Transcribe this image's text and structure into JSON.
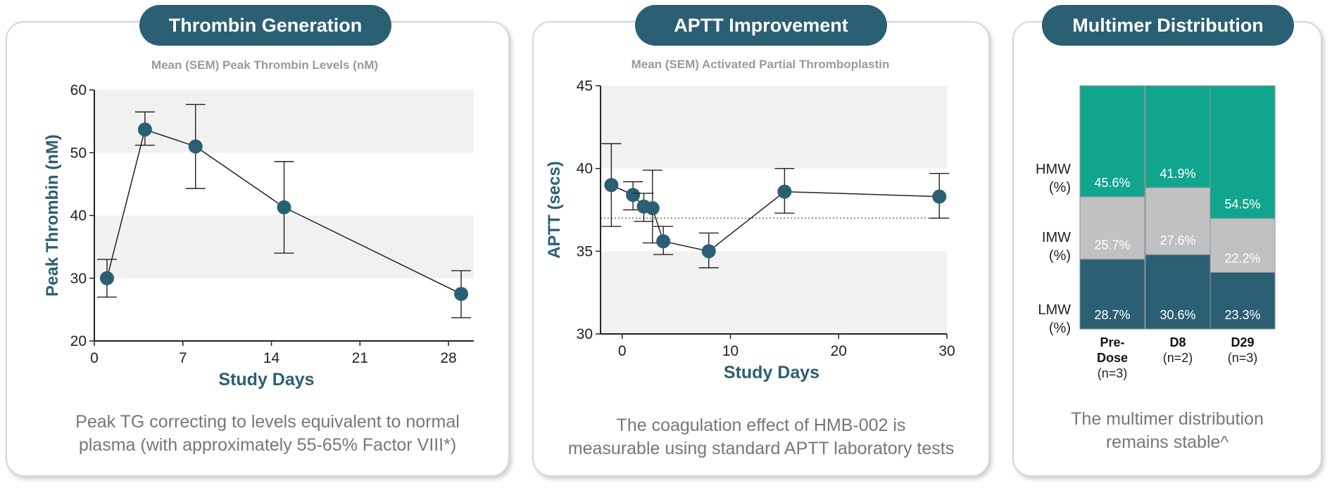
{
  "colors": {
    "title_bg": "#2b5f73",
    "marker": "#2b5f73",
    "band": "#f1f1f1",
    "hmw": "#12a58d",
    "imw": "#bfc1c3",
    "lmw": "#2b5f73"
  },
  "panels": [
    {
      "title": "Thrombin Generation",
      "caption_lines": [
        "Peak TG correcting to levels equivalent to normal",
        "plasma (with approximately 55-65% Factor VIII*)"
      ]
    },
    {
      "title": "APTT Improvement",
      "caption_lines": [
        "The coagulation effect of HMB-002 is",
        "measurable using standard APTT laboratory tests"
      ]
    },
    {
      "title": "Multimer Distribution",
      "caption_lines": [
        "The multimer distribution",
        "remains stable^"
      ]
    }
  ],
  "chart_data": [
    {
      "type": "line",
      "subtitle": "Mean (SEM) Peak Thrombin Levels (nM)",
      "xlabel": "Study Days",
      "ylabel": "Peak Thrombin (nM)",
      "xlim": [
        0,
        30
      ],
      "ylim": [
        20,
        60
      ],
      "xticks": [
        0,
        7,
        14,
        21,
        28
      ],
      "yticks": [
        20,
        30,
        40,
        50,
        60
      ],
      "shaded_bands": [
        [
          30,
          40
        ],
        [
          50,
          60
        ]
      ],
      "series": [
        {
          "points": [
            {
              "x": 1,
              "y": 30.0,
              "lo": 27.0,
              "hi": 33.0
            },
            {
              "x": 4,
              "y": 53.7,
              "lo": 51.2,
              "hi": 56.5
            },
            {
              "x": 8,
              "y": 51.0,
              "lo": 44.3,
              "hi": 57.7
            },
            {
              "x": 15,
              "y": 41.3,
              "lo": 34.0,
              "hi": 48.6
            },
            {
              "x": 29,
              "y": 27.5,
              "lo": 23.7,
              "hi": 31.2
            }
          ]
        }
      ]
    },
    {
      "type": "line",
      "subtitle": "Mean (SEM) Activated Partial Thromboplastin",
      "xlabel": "Study Days",
      "ylabel": "APTT (secs)",
      "xlim": [
        -2,
        30
      ],
      "ylim": [
        30,
        45
      ],
      "xticks": [
        0,
        10,
        20,
        30
      ],
      "yticks": [
        30,
        35,
        40,
        45
      ],
      "shaded_bands": [
        [
          30,
          35
        ],
        [
          40,
          45
        ]
      ],
      "reference_line": 37.0,
      "series": [
        {
          "points": [
            {
              "x": -1,
              "y": 39.0,
              "lo": 36.5,
              "hi": 41.5
            },
            {
              "x": 1,
              "y": 38.4,
              "lo": 37.5,
              "hi": 39.2
            },
            {
              "x": 2,
              "y": 37.7,
              "lo": 36.8,
              "hi": 38.5
            },
            {
              "x": 2.8,
              "y": 37.6,
              "lo": 35.5,
              "hi": 39.9
            },
            {
              "x": 3.8,
              "y": 35.6,
              "lo": 34.8,
              "hi": 36.5
            },
            {
              "x": 8,
              "y": 35.0,
              "lo": 34.0,
              "hi": 36.1
            },
            {
              "x": 15,
              "y": 38.6,
              "lo": 37.3,
              "hi": 40.0
            },
            {
              "x": 29.3,
              "y": 38.3,
              "lo": 37.0,
              "hi": 39.7
            }
          ]
        }
      ]
    },
    {
      "type": "bar",
      "stacked": true,
      "row_labels": [
        [
          "HMW",
          "(%)"
        ],
        [
          "IMW",
          "(%)"
        ],
        [
          "LMW",
          "(%)"
        ]
      ],
      "categories": [
        {
          "lines": [
            "Pre-",
            "Dose"
          ],
          "n": "(n=3)"
        },
        {
          "lines": [
            "D8"
          ],
          "n": "(n=2)"
        },
        {
          "lines": [
            "D29"
          ],
          "n": "(n=3)"
        }
      ],
      "series": [
        {
          "name": "LMW",
          "values": [
            28.7,
            30.6,
            23.3
          ],
          "labels": [
            "28.7%",
            "30.6%",
            "23.3%"
          ]
        },
        {
          "name": "IMW",
          "values": [
            25.7,
            27.6,
            22.2
          ],
          "labels": [
            "25.7%",
            "27.6%",
            "22.2%"
          ]
        },
        {
          "name": "HMW",
          "values": [
            45.6,
            41.9,
            54.5
          ],
          "labels": [
            "45.6%",
            "41.9%",
            "54.5%"
          ]
        }
      ]
    }
  ]
}
